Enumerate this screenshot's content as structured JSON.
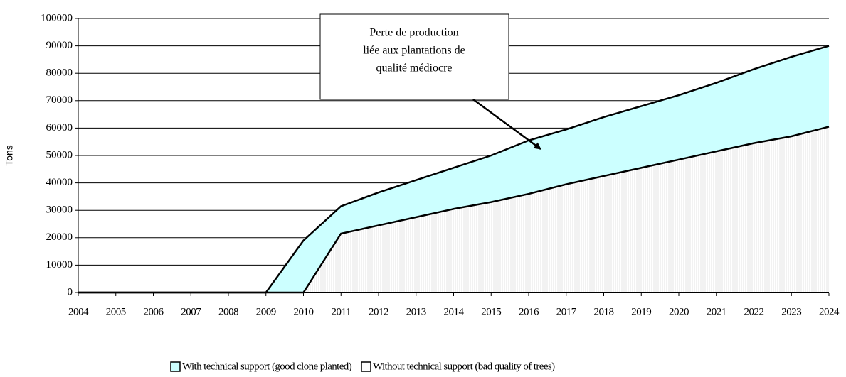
{
  "chart_data": {
    "type": "area",
    "ylabel": "Tons",
    "x": [
      2004,
      2005,
      2006,
      2007,
      2008,
      2009,
      2010,
      2011,
      2012,
      2013,
      2014,
      2015,
      2016,
      2017,
      2018,
      2019,
      2020,
      2021,
      2022,
      2023,
      2024
    ],
    "xlim": [
      2004,
      2024
    ],
    "xticks": [
      2004,
      2005,
      2006,
      2007,
      2008,
      2009,
      2010,
      2011,
      2012,
      2013,
      2014,
      2015,
      2016,
      2017,
      2018,
      2019,
      2020,
      2021,
      2022,
      2023,
      2024
    ],
    "ylim": [
      0,
      100000
    ],
    "yticks": [
      0,
      10000,
      20000,
      30000,
      40000,
      50000,
      60000,
      70000,
      80000,
      90000,
      100000
    ],
    "grid": true,
    "series": [
      {
        "name": "With technical support (good clone planted)",
        "color": "#ccffff",
        "values": [
          0,
          0,
          0,
          0,
          0,
          0,
          19000,
          31500,
          36500,
          41000,
          45500,
          50000,
          55500,
          59500,
          64000,
          68000,
          72000,
          76500,
          81500,
          86000,
          90000
        ]
      },
      {
        "name": "Without technical support (bad quality of trees)",
        "color": "#ffffff",
        "values": [
          0,
          0,
          0,
          0,
          0,
          0,
          0,
          21500,
          24500,
          27500,
          30500,
          33000,
          36000,
          39500,
          42500,
          45500,
          48500,
          51500,
          54500,
          57000,
          60500
        ]
      }
    ],
    "annotation": [
      "Perte de production",
      "liée aux plantations de",
      "qualité médiocre"
    ]
  }
}
